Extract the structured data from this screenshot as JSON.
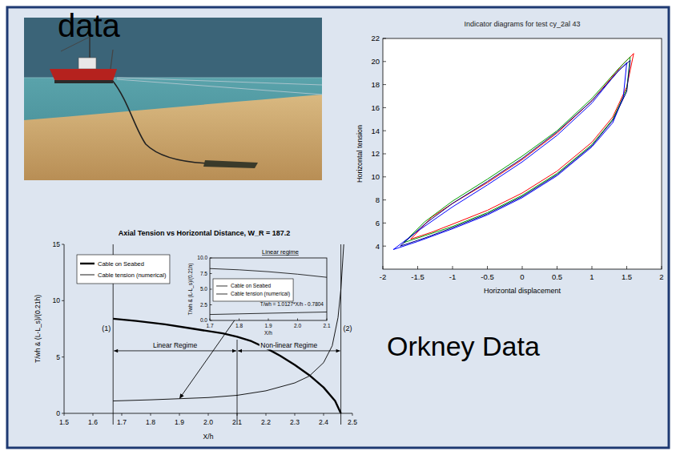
{
  "slide": {
    "heading": "data",
    "caption": "Orkney Data"
  },
  "chart_data": [
    {
      "type": "line",
      "title": "Indicator diagrams for test cy_2al 43",
      "x_label": "Horizontal displacement",
      "y_label": "Horizontal tension",
      "xlim": [
        -2,
        2
      ],
      "ylim": [
        2,
        22
      ],
      "xticks": [
        -2,
        -1.5,
        -1,
        -0.5,
        0,
        0.5,
        1,
        1.5,
        2
      ],
      "yticks": [
        4,
        6,
        8,
        10,
        12,
        14,
        16,
        18,
        20,
        22
      ],
      "series": [
        {
          "color": "#ff0000",
          "line_style": "solid",
          "x": [
            -1.6,
            -1.3,
            -1,
            -0.5,
            0,
            0.5,
            1,
            1.3,
            1.5,
            1.6,
            1.45,
            1,
            0.5,
            0,
            -0.5,
            -1,
            -1.3,
            -1.6
          ],
          "values": [
            4.6,
            5.2,
            5.9,
            7.1,
            8.6,
            10.5,
            13.0,
            15.2,
            17.8,
            20.7,
            19.8,
            16.6,
            13.8,
            11.5,
            9.5,
            7.7,
            6.5,
            4.6
          ]
        },
        {
          "color": "#00a000",
          "line_style": "solid",
          "x": [
            -1.7,
            -1.4,
            -1,
            -0.5,
            0,
            0.5,
            1,
            1.3,
            1.5,
            1.55,
            1.4,
            1,
            0.5,
            0,
            -0.5,
            -1,
            -1.4,
            -1.7
          ],
          "values": [
            4.3,
            4.9,
            5.7,
            6.9,
            8.4,
            10.3,
            12.8,
            15.0,
            17.6,
            20.4,
            19.5,
            16.8,
            14.0,
            11.8,
            9.8,
            7.9,
            6.1,
            4.3
          ]
        },
        {
          "color": "#0000ff",
          "line_style": "solid",
          "x": [
            -1.85,
            -1.5,
            -1,
            -0.5,
            0,
            0.5,
            1,
            1.3,
            1.45,
            1.5,
            1.35,
            1,
            0.5,
            0,
            -0.5,
            -1,
            -1.5,
            -1.85
          ],
          "values": [
            3.7,
            4.4,
            5.5,
            6.7,
            8.2,
            10.1,
            12.6,
            14.7,
            16.9,
            19.9,
            19.0,
            16.4,
            13.6,
            11.3,
            9.3,
            7.4,
            5.3,
            3.7
          ]
        },
        {
          "color": "#000080",
          "line_style": "solid",
          "x": [
            -1.75,
            -1.4,
            -1,
            -0.5,
            0,
            0.5,
            1,
            1.3,
            1.5,
            1.55,
            1.4,
            1,
            0.5,
            0,
            -0.5,
            -1,
            -1.4,
            -1.75
          ],
          "values": [
            4.0,
            4.7,
            5.6,
            6.8,
            8.3,
            10.2,
            12.7,
            14.9,
            17.4,
            20.1,
            19.3,
            16.6,
            13.9,
            11.6,
            9.6,
            7.7,
            5.9,
            4.0
          ]
        }
      ]
    },
    {
      "type": "line",
      "title": "Axial Tension vs Horizontal Distance, W_R = 187.2",
      "x_label": "X/h",
      "y_label": "T/wh  &  (L-L_s)/(0.21h)",
      "xlim": [
        1.5,
        2.5
      ],
      "ylim": [
        0,
        15
      ],
      "xticks": [
        1.5,
        1.6,
        1.7,
        1.8,
        1.9,
        {
          "value": 2,
          "label": "2.0"
        },
        2.1,
        2.2,
        2.3,
        2.4,
        2.5
      ],
      "yticks": [
        0,
        5,
        10,
        15
      ],
      "legend": "top-left",
      "series": [
        {
          "name": "Cable on Seabed",
          "color": "#000000",
          "line_style": "bold",
          "x": [
            1.67,
            1.75,
            1.85,
            1.95,
            2.05,
            2.1,
            2.15,
            2.2,
            2.25,
            2.3,
            2.35,
            2.4,
            2.44,
            2.46
          ],
          "values": [
            8.4,
            8.2,
            7.9,
            7.5,
            7.1,
            6.8,
            6.4,
            5.8,
            5.1,
            4.3,
            3.4,
            2.3,
            1.1,
            0
          ]
        },
        {
          "name": "Cable tension (numerical)",
          "color": "#000000",
          "line_style": "solid",
          "x": [
            1.67,
            1.8,
            1.9,
            2.0,
            2.1,
            2.2,
            2.3,
            2.35,
            2.4,
            2.43,
            2.45,
            2.46,
            2.47
          ],
          "values": [
            1.1,
            1.2,
            1.3,
            1.4,
            1.6,
            2.0,
            2.7,
            3.3,
            4.5,
            6.0,
            8.5,
            11,
            15
          ]
        }
      ],
      "annotations": [
        {
          "x": 1.67,
          "label": "(1)"
        },
        {
          "x": 2.1
        },
        {
          "x": 2.46,
          "label": "(2)"
        }
      ],
      "regimes": [
        {
          "from": 1.67,
          "to": 2.1,
          "label": "Linear Regime"
        },
        {
          "from": 2.1,
          "to": 2.46,
          "label": "Non-linear Regime"
        }
      ]
    },
    {
      "type": "line",
      "title": "Linear regime",
      "x_label": "X/h",
      "y_label": "T/wh  &  (L-L_s)/(0.21h)",
      "xlim": [
        1.7,
        2.1
      ],
      "ylim": [
        0,
        10
      ],
      "xticks": [
        1.7,
        1.8,
        1.9,
        {
          "value": 2,
          "label": "2.0"
        },
        2.1
      ],
      "yticks": [
        {
          "value": 0,
          "label": "0.0"
        },
        2.5,
        {
          "value": 5,
          "label": "5.0"
        },
        7.5,
        {
          "value": 10,
          "label": "10.0"
        }
      ],
      "legend": "left",
      "equation": "T/wh = 1.0127*X/h - 0.7804",
      "series": [
        {
          "name": "Cable on Seabed",
          "color": "#000000",
          "line_style": "solid",
          "x": [
            1.7,
            1.8,
            1.9,
            2.0,
            2.1
          ],
          "values": [
            8.3,
            8.1,
            7.8,
            7.4,
            6.9
          ]
        },
        {
          "name": "Cable tension (numerical)",
          "color": "#000000",
          "line_style": "solid",
          "x": [
            1.7,
            1.8,
            1.9,
            2.0,
            2.1
          ],
          "values": [
            0.95,
            1.05,
            1.15,
            1.25,
            1.35
          ]
        }
      ]
    }
  ]
}
